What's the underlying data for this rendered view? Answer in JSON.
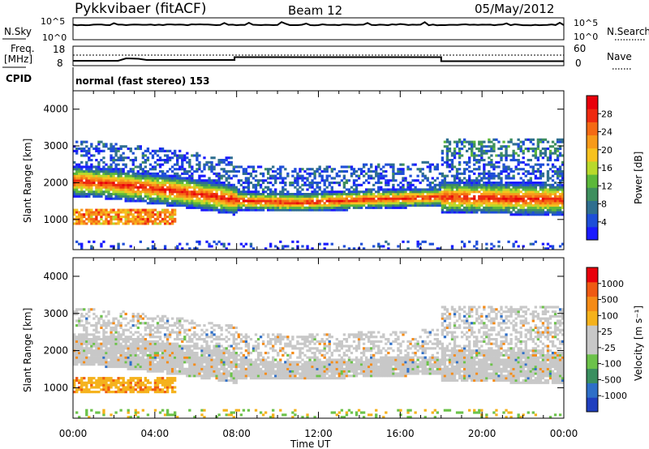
{
  "header": {
    "title": "Pykkvibaer (fitACF)",
    "beam": "Beam 12",
    "date": "05/May/2012"
  },
  "status_panel": {
    "nsky_label": "N.Sky",
    "nsky_ticks": [
      "10^5",
      "10^0"
    ],
    "nsearch_label": "N.Search",
    "nsearch_ticks": [
      "10^5",
      "10^0"
    ],
    "freq_label_1": "Freq.",
    "freq_label_2": "[MHz]",
    "freq_ticks": [
      "18",
      "8"
    ],
    "nave_label": "Nave",
    "nave_ticks": [
      "60",
      "0"
    ],
    "cpid_label": "CPID",
    "cpid_text": "normal (fast stereo) 153"
  },
  "chart_data": [
    {
      "type": "heatmap",
      "name": "power-panel",
      "ylabel": "Slant Range [km]",
      "ylim": [
        180,
        4500
      ],
      "yticks": [
        "1000",
        "2000",
        "3000",
        "4000"
      ],
      "xlim": [
        0,
        24
      ],
      "colorbar": {
        "label": "Power [dB]",
        "ticks": [
          "4",
          "8",
          "12",
          "16",
          "20",
          "24",
          "28"
        ],
        "colors": [
          "#1a1aff",
          "#1e4ed8",
          "#2f6f8f",
          "#3e8f5e",
          "#5cb83a",
          "#b9d92b",
          "#f7c21f",
          "#f79a1a",
          "#f46a14",
          "#ee2a10",
          "#e8000b"
        ]
      }
    },
    {
      "type": "heatmap",
      "name": "velocity-panel",
      "ylabel": "Slant Range [km]",
      "ylim": [
        180,
        4500
      ],
      "yticks": [
        "1000",
        "2000",
        "3000",
        "4000"
      ],
      "xlim": [
        0,
        24
      ],
      "colorbar": {
        "label": "Velocity [m s⁻¹]",
        "ticks": [
          "1000",
          "500",
          "100",
          "25",
          "-25",
          "-100",
          "-500",
          "-1000"
        ],
        "colors": [
          "#1f3fbf",
          "#2e6fc8",
          "#3a8f60",
          "#6cc24a",
          "#c8c8c8",
          "#c8c8c8",
          "#f5b21c",
          "#f58b16",
          "#ef5a12",
          "#e8000b"
        ]
      }
    }
  ],
  "xaxis": {
    "ticks": [
      "00:00",
      "04:00",
      "08:00",
      "12:00",
      "16:00",
      "20:00",
      "00:00"
    ],
    "label": "Time UT"
  }
}
